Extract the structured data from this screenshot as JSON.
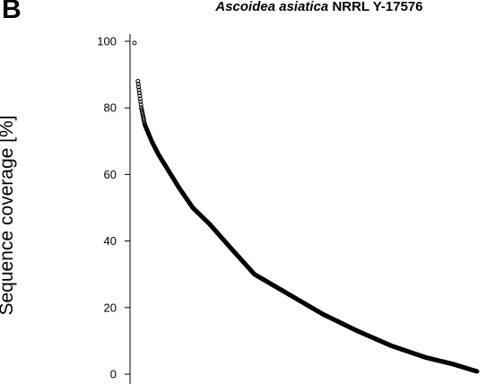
{
  "panel_label": "B",
  "chart_data": {
    "type": "scatter",
    "title_species": "Ascoidea asiatica",
    "title_strain": " NRRL Y-17576",
    "xlabel": "",
    "ylabel": "Sequence coverage [%]",
    "ylim": [
      0,
      100
    ],
    "yticks": [
      "0",
      "20",
      "40",
      "60",
      "80",
      "100"
    ],
    "ytick_values": [
      0,
      20,
      40,
      60,
      80,
      100
    ],
    "x": [
      0,
      0.01,
      0.02,
      0.03,
      0.05,
      0.07,
      0.1,
      0.13,
      0.17,
      0.22,
      0.28,
      0.35,
      0.45,
      0.55,
      0.65,
      0.75,
      0.85,
      0.93,
      1.0
    ],
    "y": [
      99.5,
      88,
      80,
      75,
      70,
      66,
      61,
      56,
      50,
      45,
      38,
      30,
      24,
      18,
      13,
      8.5,
      5,
      3,
      0.8
    ],
    "marker": "open-circle",
    "color": "#000000"
  }
}
